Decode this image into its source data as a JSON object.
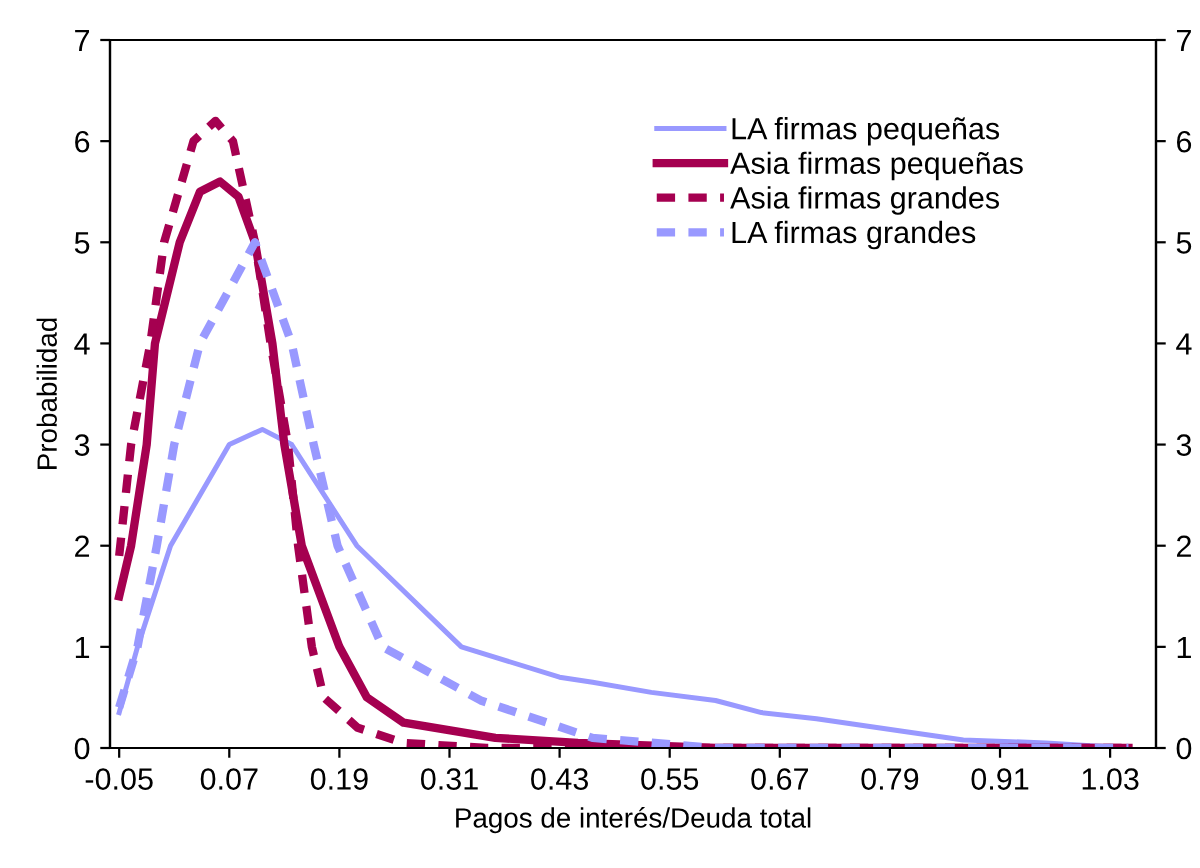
{
  "chart_data": {
    "type": "line",
    "xlabel": "Pagos de interés/Deuda total",
    "ylabel": "Probabilidad",
    "xlim": [
      -0.06,
      1.08
    ],
    "xticks": [
      -0.05,
      0.07,
      0.19,
      0.31,
      0.43,
      0.55,
      0.67,
      0.79,
      0.91,
      1.03
    ],
    "ylim": [
      0,
      7
    ],
    "yticks": [
      0,
      1,
      2,
      3,
      4,
      5,
      6,
      7
    ],
    "y2lim": [
      0,
      7
    ],
    "y2ticks": [
      0,
      1,
      2,
      3,
      4,
      5,
      6,
      7
    ],
    "grid": false,
    "legend": "top right",
    "marker": "none",
    "series": [
      {
        "name": "LA firmas pequeñas",
        "color": "#9999ff",
        "line_style": "solid",
        "x": [
          -0.05,
          -0.03,
          0.006,
          0.07,
          0.106,
          0.138,
          0.209,
          0.323,
          0.43,
          0.466,
          0.53,
          0.6,
          0.65,
          0.71,
          0.8,
          0.87,
          0.96,
          1.05
        ],
        "values": [
          0.35,
          1,
          2,
          3,
          3.15,
          3,
          2,
          1,
          0.7,
          0.65,
          0.55,
          0.47,
          0.35,
          0.29,
          0.17,
          0.08,
          0.05,
          0
        ]
      },
      {
        "name": "Asia firmas pequeñas",
        "color": "#a50050",
        "line_style": "solid",
        "x": [
          -0.05,
          -0.037,
          -0.02,
          -0.011,
          0.016,
          0.038,
          0.06,
          0.08,
          0.098,
          0.117,
          0.13,
          0.149,
          0.19,
          0.22,
          0.26,
          0.36,
          0.45,
          0.6,
          1.05
        ],
        "values": [
          1.5,
          2,
          3,
          4,
          5,
          5.5,
          5.6,
          5.45,
          5,
          4,
          3,
          2,
          1,
          0.5,
          0.25,
          0.1,
          0.05,
          0,
          0
        ]
      },
      {
        "name": "Asia firmas grandes",
        "color": "#a50050",
        "line_style": "dashed",
        "x": [
          -0.05,
          -0.037,
          -0.016,
          -0.001,
          0.031,
          0.055,
          0.074,
          0.098,
          0.115,
          0.134,
          0.145,
          0.16,
          0.173,
          0.21,
          0.26,
          0.35,
          1.05
        ],
        "values": [
          1.9,
          3,
          4,
          5,
          6,
          6.2,
          6,
          5,
          4,
          3,
          2,
          1,
          0.5,
          0.2,
          0.05,
          0,
          0
        ]
      },
      {
        "name": "LA firmas grandes",
        "color": "#9999ff",
        "line_style": "dashed",
        "x": [
          -0.05,
          -0.03,
          -0.009,
          0.01,
          0.038,
          0.098,
          0.138,
          0.162,
          0.188,
          0.237,
          0.344,
          0.466,
          0.6,
          1.05
        ],
        "values": [
          0.4,
          1,
          2,
          3,
          4,
          5,
          4,
          3,
          2,
          1,
          0.47,
          0.1,
          0,
          0
        ]
      }
    ]
  }
}
